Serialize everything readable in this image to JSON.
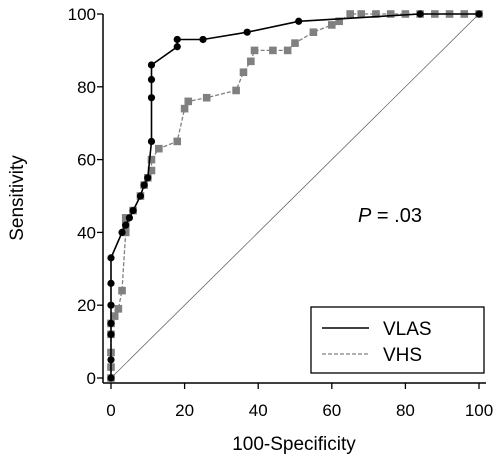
{
  "chart_data": {
    "type": "line",
    "xlabel": "100-Specificity",
    "ylabel": "Sensitivity",
    "xlim": [
      0,
      100
    ],
    "ylim": [
      0,
      100
    ],
    "xticks": [
      "0",
      "20",
      "40",
      "60",
      "80",
      "100"
    ],
    "yticks": [
      "0",
      "20",
      "40",
      "60",
      "80",
      "100"
    ],
    "grid": false,
    "annotation": {
      "italic": "P",
      "rest": " = .03"
    },
    "legend_position": "bottom-right",
    "reference_line": {
      "from": [
        0,
        0
      ],
      "to": [
        100,
        100
      ],
      "color": "#555555"
    },
    "series": [
      {
        "name": "VLAS",
        "color": "#000000",
        "marker": "circle",
        "line_style": "solid",
        "points": [
          [
            0,
            0
          ],
          [
            0,
            5
          ],
          [
            0,
            12
          ],
          [
            0,
            15
          ],
          [
            0,
            20
          ],
          [
            0,
            26
          ],
          [
            0,
            33
          ],
          [
            3,
            40
          ],
          [
            4,
            42
          ],
          [
            5,
            44
          ],
          [
            6,
            46
          ],
          [
            8,
            50
          ],
          [
            9,
            53
          ],
          [
            10,
            55
          ],
          [
            11,
            65
          ],
          [
            11,
            77
          ],
          [
            11,
            82
          ],
          [
            11,
            86
          ],
          [
            18,
            91
          ],
          [
            18,
            93
          ],
          [
            25,
            93
          ],
          [
            37,
            95
          ],
          [
            51,
            98
          ],
          [
            84,
            100
          ],
          [
            100,
            100
          ]
        ]
      },
      {
        "name": "VHS",
        "color": "#808080",
        "marker": "square",
        "line_style": "dashed",
        "points": [
          [
            0,
            0
          ],
          [
            0,
            3
          ],
          [
            0,
            7
          ],
          [
            0,
            12
          ],
          [
            0,
            15
          ],
          [
            1,
            17
          ],
          [
            2,
            19
          ],
          [
            3,
            24
          ],
          [
            4,
            40
          ],
          [
            4,
            42
          ],
          [
            4,
            44
          ],
          [
            6,
            46
          ],
          [
            8,
            50
          ],
          [
            9,
            53
          ],
          [
            10,
            55
          ],
          [
            11,
            57
          ],
          [
            11,
            60
          ],
          [
            13,
            63
          ],
          [
            18,
            65
          ],
          [
            20,
            74
          ],
          [
            21,
            76
          ],
          [
            26,
            77
          ],
          [
            34,
            79
          ],
          [
            36,
            84
          ],
          [
            38,
            87
          ],
          [
            39,
            90
          ],
          [
            44,
            90
          ],
          [
            48,
            90
          ],
          [
            50,
            92
          ],
          [
            55,
            95
          ],
          [
            60,
            97
          ],
          [
            62,
            98
          ],
          [
            65,
            100
          ],
          [
            68,
            100
          ],
          [
            72,
            100
          ],
          [
            76,
            100
          ],
          [
            80,
            100
          ],
          [
            84,
            100
          ],
          [
            88,
            100
          ],
          [
            92,
            100
          ],
          [
            96,
            100
          ],
          [
            100,
            100
          ]
        ]
      }
    ]
  }
}
